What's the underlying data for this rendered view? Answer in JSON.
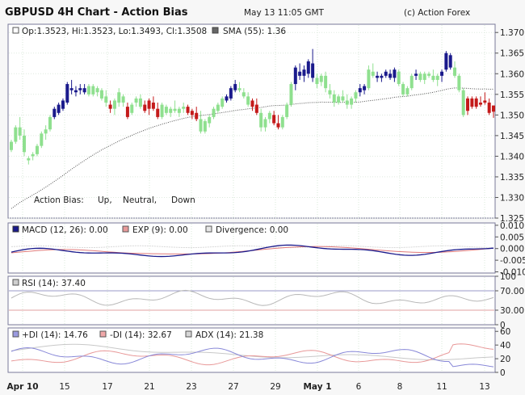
{
  "header": {
    "title": "GBPUSD 4H Chart - Action Bias",
    "timestamp": "May 13 11:05 GMT",
    "copyright": "(c) Action Forex"
  },
  "colors": {
    "up": "#1a1a8c",
    "neutral": "#8fe08f",
    "down": "#c41a1a",
    "sma": "#555555",
    "macd": "#1a1a8c",
    "exp": "#e07a7a",
    "divergence": "#d8d8d8",
    "plus_di": "#8888d8",
    "minus_di": "#e89898",
    "adx": "#c8c8c8",
    "rsi": "#b8b8b8"
  },
  "price_panel": {
    "ohlc_label": "Op:1.3523, Hi:1.3523, Lo:1.3493, Cl:1.3508",
    "sma_label": "SMA (55): 1.36",
    "legend": {
      "prefix": "Action Bias:",
      "up": "Up,",
      "neutral": "Neutral,",
      "down": "Down"
    }
  },
  "macd_panel": {
    "macd_label": "MACD (12, 26): 0.00",
    "exp_label": "EXP (9): 0.00",
    "divergence_label": "Divergence: 0.00"
  },
  "rsi_panel": {
    "rsi_label": "RSI (14): 37.40"
  },
  "dmi_panel": {
    "plus_di_label": "+DI (14): 14.76",
    "minus_di_label": "-DI (14): 32.67",
    "adx_label": "ADX (14): 21.38"
  },
  "chart_data": {
    "type": "bar",
    "x_labels": [
      "Apr 10",
      "15",
      "17",
      "21",
      "23",
      "27",
      "29",
      "May 1",
      "6",
      "8",
      "11",
      "13"
    ],
    "price": {
      "y_ticks": [
        "1.370",
        "1.365",
        "1.360",
        "1.355",
        "1.350",
        "1.345",
        "1.340",
        "1.335",
        "1.330",
        "1.325"
      ],
      "ylim": [
        1.325,
        1.372
      ],
      "bars": [
        {
          "o": 1.3415,
          "h": 1.344,
          "l": 1.341,
          "c": 1.3435,
          "b": "n"
        },
        {
          "o": 1.3435,
          "h": 1.3475,
          "l": 1.343,
          "c": 1.347,
          "b": "n"
        },
        {
          "o": 1.347,
          "h": 1.3495,
          "l": 1.344,
          "c": 1.345,
          "b": "n"
        },
        {
          "o": 1.345,
          "h": 1.3465,
          "l": 1.34,
          "c": 1.341,
          "b": "n"
        },
        {
          "o": 1.339,
          "h": 1.34,
          "l": 1.338,
          "c": 1.3395,
          "b": "n"
        },
        {
          "o": 1.34,
          "h": 1.341,
          "l": 1.339,
          "c": 1.3405,
          "b": "n"
        },
        {
          "o": 1.3405,
          "h": 1.343,
          "l": 1.34,
          "c": 1.3425,
          "b": "n"
        },
        {
          "o": 1.3425,
          "h": 1.346,
          "l": 1.342,
          "c": 1.3455,
          "b": "n"
        },
        {
          "o": 1.3455,
          "h": 1.3475,
          "l": 1.344,
          "c": 1.3465,
          "b": "n"
        },
        {
          "o": 1.3465,
          "h": 1.35,
          "l": 1.346,
          "c": 1.3495,
          "b": "n"
        },
        {
          "o": 1.3495,
          "h": 1.352,
          "l": 1.349,
          "c": 1.3515,
          "b": "u"
        },
        {
          "o": 1.3505,
          "h": 1.353,
          "l": 1.35,
          "c": 1.3525,
          "b": "u"
        },
        {
          "o": 1.3515,
          "h": 1.354,
          "l": 1.351,
          "c": 1.3535,
          "b": "u"
        },
        {
          "o": 1.353,
          "h": 1.358,
          "l": 1.3525,
          "c": 1.3575,
          "b": "u"
        },
        {
          "o": 1.356,
          "h": 1.3585,
          "l": 1.355,
          "c": 1.3565,
          "b": "u"
        },
        {
          "o": 1.3555,
          "h": 1.357,
          "l": 1.3545,
          "c": 1.356,
          "b": "u"
        },
        {
          "o": 1.356,
          "h": 1.3575,
          "l": 1.355,
          "c": 1.3565,
          "b": "u"
        },
        {
          "o": 1.3565,
          "h": 1.3575,
          "l": 1.355,
          "c": 1.3555,
          "b": "u"
        },
        {
          "o": 1.355,
          "h": 1.3575,
          "l": 1.3545,
          "c": 1.357,
          "b": "n"
        },
        {
          "o": 1.357,
          "h": 1.3575,
          "l": 1.3545,
          "c": 1.355,
          "b": "n"
        },
        {
          "o": 1.3555,
          "h": 1.357,
          "l": 1.3545,
          "c": 1.3565,
          "b": "n"
        },
        {
          "o": 1.356,
          "h": 1.3565,
          "l": 1.3535,
          "c": 1.354,
          "b": "n"
        },
        {
          "o": 1.3545,
          "h": 1.356,
          "l": 1.352,
          "c": 1.353,
          "b": "n"
        },
        {
          "o": 1.3525,
          "h": 1.3535,
          "l": 1.3505,
          "c": 1.3515,
          "b": "d"
        },
        {
          "o": 1.3515,
          "h": 1.354,
          "l": 1.35,
          "c": 1.3535,
          "b": "n"
        },
        {
          "o": 1.353,
          "h": 1.3565,
          "l": 1.352,
          "c": 1.3555,
          "b": "n"
        },
        {
          "o": 1.3545,
          "h": 1.355,
          "l": 1.352,
          "c": 1.353,
          "b": "n"
        },
        {
          "o": 1.352,
          "h": 1.353,
          "l": 1.349,
          "c": 1.3495,
          "b": "d"
        },
        {
          "o": 1.3505,
          "h": 1.353,
          "l": 1.35,
          "c": 1.3525,
          "b": "n"
        },
        {
          "o": 1.353,
          "h": 1.3545,
          "l": 1.352,
          "c": 1.354,
          "b": "n"
        },
        {
          "o": 1.354,
          "h": 1.355,
          "l": 1.3515,
          "c": 1.352,
          "b": "n"
        },
        {
          "o": 1.3525,
          "h": 1.3535,
          "l": 1.3505,
          "c": 1.351,
          "b": "d"
        },
        {
          "o": 1.3515,
          "h": 1.354,
          "l": 1.35,
          "c": 1.3535,
          "b": "d"
        },
        {
          "o": 1.353,
          "h": 1.3545,
          "l": 1.351,
          "c": 1.3515,
          "b": "d"
        },
        {
          "o": 1.3515,
          "h": 1.353,
          "l": 1.349,
          "c": 1.3495,
          "b": "d"
        },
        {
          "o": 1.3495,
          "h": 1.353,
          "l": 1.349,
          "c": 1.3525,
          "b": "n"
        },
        {
          "o": 1.352,
          "h": 1.3525,
          "l": 1.35,
          "c": 1.3505,
          "b": "n"
        },
        {
          "o": 1.3505,
          "h": 1.352,
          "l": 1.3495,
          "c": 1.3515,
          "b": "n"
        },
        {
          "o": 1.3515,
          "h": 1.3535,
          "l": 1.3505,
          "c": 1.351,
          "b": "n"
        },
        {
          "o": 1.3505,
          "h": 1.352,
          "l": 1.3495,
          "c": 1.3515,
          "b": "n"
        },
        {
          "o": 1.3515,
          "h": 1.353,
          "l": 1.3505,
          "c": 1.352,
          "b": "n"
        },
        {
          "o": 1.352,
          "h": 1.3525,
          "l": 1.35,
          "c": 1.3505,
          "b": "d"
        },
        {
          "o": 1.35,
          "h": 1.3515,
          "l": 1.349,
          "c": 1.351,
          "b": "d"
        },
        {
          "o": 1.3505,
          "h": 1.352,
          "l": 1.3485,
          "c": 1.349,
          "b": "d"
        },
        {
          "o": 1.349,
          "h": 1.351,
          "l": 1.3455,
          "c": 1.346,
          "b": "n"
        },
        {
          "o": 1.346,
          "h": 1.349,
          "l": 1.3455,
          "c": 1.3485,
          "b": "n"
        },
        {
          "o": 1.348,
          "h": 1.35,
          "l": 1.347,
          "c": 1.3495,
          "b": "n"
        },
        {
          "o": 1.3495,
          "h": 1.352,
          "l": 1.349,
          "c": 1.3515,
          "b": "n"
        },
        {
          "o": 1.351,
          "h": 1.353,
          "l": 1.3505,
          "c": 1.3525,
          "b": "n"
        },
        {
          "o": 1.352,
          "h": 1.3545,
          "l": 1.3515,
          "c": 1.354,
          "b": "n"
        },
        {
          "o": 1.3535,
          "h": 1.355,
          "l": 1.353,
          "c": 1.3545,
          "b": "u"
        },
        {
          "o": 1.354,
          "h": 1.357,
          "l": 1.3535,
          "c": 1.3565,
          "b": "u"
        },
        {
          "o": 1.356,
          "h": 1.3585,
          "l": 1.3555,
          "c": 1.3575,
          "b": "u"
        },
        {
          "o": 1.3565,
          "h": 1.358,
          "l": 1.3555,
          "c": 1.356,
          "b": "n"
        },
        {
          "o": 1.3555,
          "h": 1.3565,
          "l": 1.354,
          "c": 1.3545,
          "b": "n"
        },
        {
          "o": 1.3545,
          "h": 1.3555,
          "l": 1.352,
          "c": 1.3525,
          "b": "n"
        },
        {
          "o": 1.352,
          "h": 1.354,
          "l": 1.351,
          "c": 1.3535,
          "b": "d"
        },
        {
          "o": 1.3525,
          "h": 1.354,
          "l": 1.35,
          "c": 1.3505,
          "b": "d"
        },
        {
          "o": 1.3505,
          "h": 1.3515,
          "l": 1.346,
          "c": 1.347,
          "b": "n"
        },
        {
          "o": 1.347,
          "h": 1.3495,
          "l": 1.346,
          "c": 1.349,
          "b": "n"
        },
        {
          "o": 1.349,
          "h": 1.351,
          "l": 1.348,
          "c": 1.3505,
          "b": "n"
        },
        {
          "o": 1.35,
          "h": 1.351,
          "l": 1.3475,
          "c": 1.348,
          "b": "d"
        },
        {
          "o": 1.348,
          "h": 1.35,
          "l": 1.3465,
          "c": 1.347,
          "b": "d"
        },
        {
          "o": 1.347,
          "h": 1.35,
          "l": 1.3465,
          "c": 1.3495,
          "b": "n"
        },
        {
          "o": 1.3495,
          "h": 1.353,
          "l": 1.349,
          "c": 1.3525,
          "b": "n"
        },
        {
          "o": 1.3525,
          "h": 1.358,
          "l": 1.352,
          "c": 1.3575,
          "b": "n"
        },
        {
          "o": 1.3575,
          "h": 1.362,
          "l": 1.356,
          "c": 1.3615,
          "b": "u"
        },
        {
          "o": 1.3605,
          "h": 1.3625,
          "l": 1.3585,
          "c": 1.3595,
          "b": "u"
        },
        {
          "o": 1.3595,
          "h": 1.362,
          "l": 1.358,
          "c": 1.361,
          "b": "u"
        },
        {
          "o": 1.36,
          "h": 1.3635,
          "l": 1.359,
          "c": 1.363,
          "b": "u"
        },
        {
          "o": 1.3625,
          "h": 1.366,
          "l": 1.358,
          "c": 1.359,
          "b": "u"
        },
        {
          "o": 1.359,
          "h": 1.36,
          "l": 1.3565,
          "c": 1.3575,
          "b": "n"
        },
        {
          "o": 1.358,
          "h": 1.36,
          "l": 1.357,
          "c": 1.3595,
          "b": "n"
        },
        {
          "o": 1.3595,
          "h": 1.3605,
          "l": 1.3555,
          "c": 1.3565,
          "b": "n"
        },
        {
          "o": 1.356,
          "h": 1.3575,
          "l": 1.354,
          "c": 1.355,
          "b": "n"
        },
        {
          "o": 1.355,
          "h": 1.356,
          "l": 1.352,
          "c": 1.353,
          "b": "n"
        },
        {
          "o": 1.353,
          "h": 1.355,
          "l": 1.3525,
          "c": 1.3545,
          "b": "n"
        },
        {
          "o": 1.3545,
          "h": 1.356,
          "l": 1.353,
          "c": 1.3535,
          "b": "n"
        },
        {
          "o": 1.3535,
          "h": 1.355,
          "l": 1.3515,
          "c": 1.3525,
          "b": "n"
        },
        {
          "o": 1.3525,
          "h": 1.3545,
          "l": 1.3515,
          "c": 1.354,
          "b": "n"
        },
        {
          "o": 1.354,
          "h": 1.356,
          "l": 1.353,
          "c": 1.3555,
          "b": "n"
        },
        {
          "o": 1.3555,
          "h": 1.3575,
          "l": 1.3545,
          "c": 1.3565,
          "b": "u"
        },
        {
          "o": 1.356,
          "h": 1.3575,
          "l": 1.355,
          "c": 1.357,
          "b": "u"
        },
        {
          "o": 1.3565,
          "h": 1.362,
          "l": 1.356,
          "c": 1.361,
          "b": "n"
        },
        {
          "o": 1.3605,
          "h": 1.3625,
          "l": 1.359,
          "c": 1.3595,
          "b": "n"
        },
        {
          "o": 1.3595,
          "h": 1.3605,
          "l": 1.358,
          "c": 1.359,
          "b": "u"
        },
        {
          "o": 1.359,
          "h": 1.36,
          "l": 1.358,
          "c": 1.3595,
          "b": "u"
        },
        {
          "o": 1.3595,
          "h": 1.361,
          "l": 1.359,
          "c": 1.3605,
          "b": "u"
        },
        {
          "o": 1.36,
          "h": 1.361,
          "l": 1.3585,
          "c": 1.359,
          "b": "u"
        },
        {
          "o": 1.359,
          "h": 1.3615,
          "l": 1.358,
          "c": 1.361,
          "b": "u"
        },
        {
          "o": 1.3605,
          "h": 1.361,
          "l": 1.357,
          "c": 1.3575,
          "b": "n"
        },
        {
          "o": 1.3575,
          "h": 1.358,
          "l": 1.3545,
          "c": 1.355,
          "b": "n"
        },
        {
          "o": 1.355,
          "h": 1.357,
          "l": 1.3545,
          "c": 1.3565,
          "b": "n"
        },
        {
          "o": 1.3565,
          "h": 1.36,
          "l": 1.356,
          "c": 1.3595,
          "b": "n"
        },
        {
          "o": 1.3595,
          "h": 1.361,
          "l": 1.3585,
          "c": 1.36,
          "b": "u"
        },
        {
          "o": 1.36,
          "h": 1.3605,
          "l": 1.358,
          "c": 1.3585,
          "b": "n"
        },
        {
          "o": 1.3585,
          "h": 1.3605,
          "l": 1.3575,
          "c": 1.36,
          "b": "n"
        },
        {
          "o": 1.36,
          "h": 1.3605,
          "l": 1.359,
          "c": 1.3595,
          "b": "n"
        },
        {
          "o": 1.3595,
          "h": 1.361,
          "l": 1.358,
          "c": 1.3585,
          "b": "n"
        },
        {
          "o": 1.3585,
          "h": 1.36,
          "l": 1.357,
          "c": 1.3595,
          "b": "n"
        },
        {
          "o": 1.3595,
          "h": 1.361,
          "l": 1.358,
          "c": 1.3605,
          "b": "u"
        },
        {
          "o": 1.361,
          "h": 1.3655,
          "l": 1.3605,
          "c": 1.365,
          "b": "u"
        },
        {
          "o": 1.3645,
          "h": 1.365,
          "l": 1.361,
          "c": 1.3615,
          "b": "u"
        },
        {
          "o": 1.3615,
          "h": 1.363,
          "l": 1.359,
          "c": 1.3595,
          "b": "n"
        },
        {
          "o": 1.3595,
          "h": 1.36,
          "l": 1.3555,
          "c": 1.356,
          "b": "n"
        },
        {
          "o": 1.356,
          "h": 1.3565,
          "l": 1.3495,
          "c": 1.35,
          "b": "n"
        },
        {
          "o": 1.351,
          "h": 1.3545,
          "l": 1.35,
          "c": 1.354,
          "b": "d"
        },
        {
          "o": 1.354,
          "h": 1.3545,
          "l": 1.3515,
          "c": 1.352,
          "b": "d"
        },
        {
          "o": 1.352,
          "h": 1.3545,
          "l": 1.3515,
          "c": 1.354,
          "b": "d"
        },
        {
          "o": 1.3525,
          "h": 1.3545,
          "l": 1.352,
          "c": 1.353,
          "b": "d"
        },
        {
          "o": 1.3535,
          "h": 1.3555,
          "l": 1.3525,
          "c": 1.353,
          "b": "d"
        },
        {
          "o": 1.353,
          "h": 1.354,
          "l": 1.35,
          "c": 1.3505,
          "b": "d"
        },
        {
          "o": 1.3523,
          "h": 1.3523,
          "l": 1.3493,
          "c": 1.3508,
          "b": "d"
        }
      ]
    },
    "macd": {
      "y_ticks": [
        "0.010",
        "0.005",
        "0.000",
        "-0.005",
        "-0.010"
      ],
      "ylim": [
        -0.0105,
        0.011
      ]
    },
    "rsi": {
      "y_ticks": [
        "100",
        "70.00",
        "30.00",
        "0"
      ],
      "ylim": [
        0,
        100
      ],
      "levels": [
        70,
        30
      ]
    },
    "dmi": {
      "y_ticks": [
        "60",
        "40",
        "20",
        "0"
      ],
      "ylim": [
        0,
        65
      ]
    }
  }
}
